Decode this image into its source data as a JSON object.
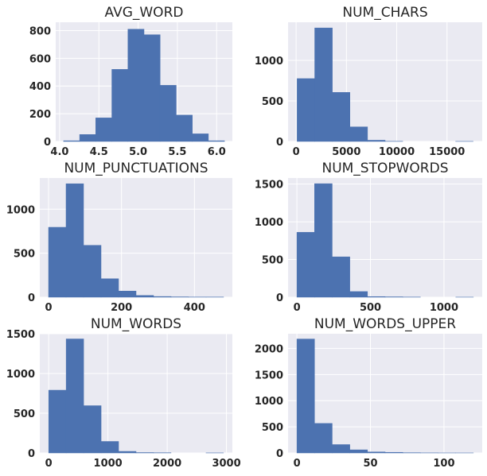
{
  "chart_data": [
    {
      "type": "bar",
      "title": "AVG_WORD",
      "bin_edges": [
        4.05,
        4.255,
        4.46,
        4.665,
        4.87,
        5.075,
        5.28,
        5.485,
        5.69,
        5.895,
        6.1
      ],
      "values": [
        5,
        50,
        170,
        520,
        810,
        770,
        405,
        190,
        55,
        5
      ],
      "xlim": [
        3.95,
        6.2
      ],
      "ylim": [
        0,
        860
      ],
      "xticks": [
        4.0,
        4.5,
        5.0,
        5.5,
        6.0
      ],
      "xtick_labels": [
        "4.0",
        "4.5",
        "5.0",
        "5.5",
        "6.0"
      ],
      "yticks": [
        0,
        200,
        400,
        600,
        800
      ],
      "ytick_labels": [
        "0",
        "200",
        "400",
        "600",
        "800"
      ]
    },
    {
      "type": "bar",
      "title": "NUM_CHARS",
      "bin_edges": [
        100,
        1850,
        3600,
        5350,
        7100,
        8850,
        10600,
        12350,
        14100,
        15850,
        17600
      ],
      "values": [
        775,
        1400,
        605,
        180,
        15,
        2,
        0,
        0,
        0,
        1
      ],
      "xlim": [
        -800,
        18500
      ],
      "ylim": [
        0,
        1470
      ],
      "xticks": [
        0,
        5000,
        10000,
        15000
      ],
      "xtick_labels": [
        "0",
        "5000",
        "10000",
        "15000"
      ],
      "yticks": [
        0,
        500,
        1000
      ],
      "ytick_labels": [
        "0",
        "500",
        "1000"
      ]
    },
    {
      "type": "bar",
      "title": "NUM_PUNCTUATIONS",
      "bin_edges": [
        0,
        48,
        96,
        144,
        192,
        240,
        288,
        336,
        384,
        432,
        480
      ],
      "values": [
        795,
        1290,
        590,
        210,
        70,
        20,
        8,
        4,
        2,
        2
      ],
      "xlim": [
        -24,
        504
      ],
      "ylim": [
        0,
        1355
      ],
      "xticks": [
        0,
        200,
        400
      ],
      "xtick_labels": [
        "0",
        "200",
        "400"
      ],
      "yticks": [
        0,
        500,
        1000
      ],
      "ytick_labels": [
        "0",
        "500",
        "1000"
      ]
    },
    {
      "type": "bar",
      "title": "NUM_STOPWORDS",
      "bin_edges": [
        0,
        120,
        240,
        360,
        480,
        600,
        720,
        840,
        960,
        1080,
        1200
      ],
      "values": [
        860,
        1505,
        535,
        75,
        8,
        5,
        2,
        0,
        0,
        1
      ],
      "xlim": [
        -60,
        1260
      ],
      "ylim": [
        0,
        1580
      ],
      "xticks": [
        0,
        500,
        1000
      ],
      "xtick_labels": [
        "0",
        "500",
        "1000"
      ],
      "yticks": [
        0,
        500,
        1000,
        1500
      ],
      "ytick_labels": [
        "0",
        "500",
        "1000",
        "1500"
      ]
    },
    {
      "type": "bar",
      "title": "NUM_WORDS",
      "bin_edges": [
        0,
        295,
        590,
        885,
        1180,
        1475,
        1770,
        2065,
        2360,
        2655,
        2950
      ],
      "values": [
        790,
        1435,
        595,
        145,
        20,
        5,
        3,
        0,
        0,
        1
      ],
      "xlim": [
        -150,
        3100
      ],
      "ylim": [
        0,
        1500
      ],
      "xticks": [
        0,
        1000,
        2000,
        3000
      ],
      "xtick_labels": [
        "0",
        "1000",
        "2000",
        "3000"
      ],
      "yticks": [
        0,
        500,
        1000,
        1500
      ],
      "ytick_labels": [
        "0",
        "500",
        "1000",
        "1500"
      ]
    },
    {
      "type": "bar",
      "title": "NUM_WORDS_UPPER",
      "bin_edges": [
        0,
        12,
        24,
        36,
        48,
        60,
        72,
        84,
        96,
        108,
        120
      ],
      "values": [
        2180,
        565,
        160,
        60,
        20,
        12,
        5,
        2,
        1,
        1
      ],
      "xlim": [
        -6,
        126
      ],
      "ylim": [
        0,
        2280
      ],
      "xticks": [
        0,
        50,
        100
      ],
      "xtick_labels": [
        "0",
        "50",
        "100"
      ],
      "yticks": [
        0,
        500,
        1000,
        1500,
        2000
      ],
      "ytick_labels": [
        "0",
        "500",
        "1000",
        "1500",
        "2000"
      ]
    }
  ]
}
